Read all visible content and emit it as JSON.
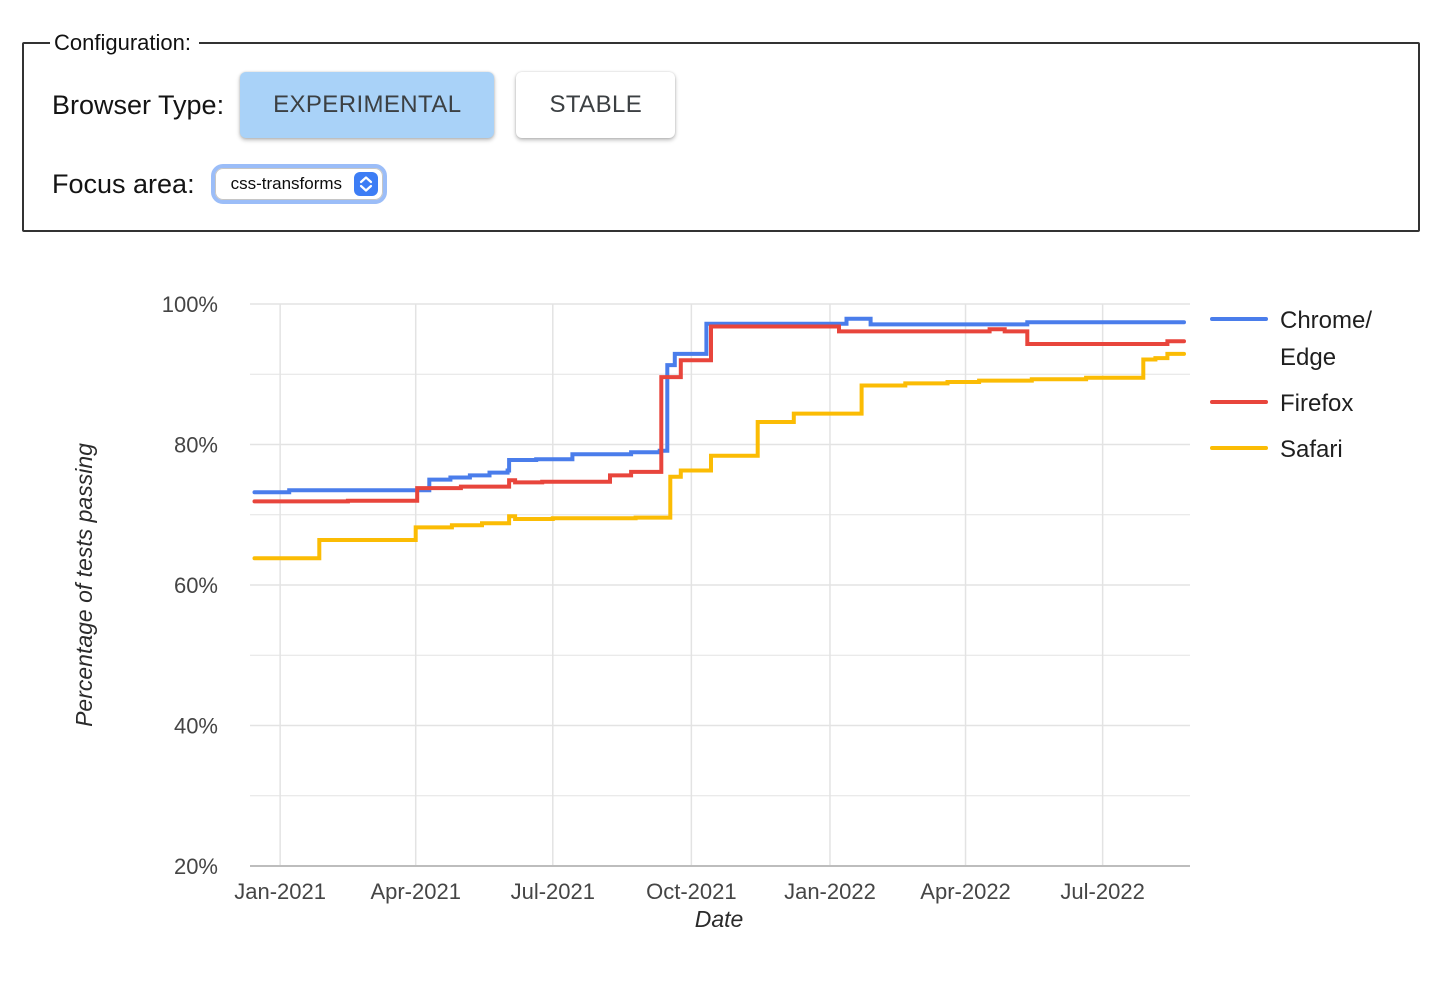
{
  "configuration": {
    "legend": "Configuration:",
    "browser_type": {
      "label": "Browser Type:",
      "options": [
        {
          "label": "EXPERIMENTAL",
          "selected": true
        },
        {
          "label": "STABLE",
          "selected": false
        }
      ]
    },
    "focus_area": {
      "label": "Focus area:",
      "selected_option": "css-transforms"
    }
  },
  "colors": {
    "chrome_edge": "#4A7DEB",
    "firefox": "#E8453C",
    "safari": "#FBBC04",
    "selected_button_bg": "#A9D2F8",
    "gridline": "#E3E3E3",
    "axis_line": "#BDBDBD",
    "tick_label": "#454545",
    "select_ring": "#9BBDF8",
    "select_stepper": "#3D7DF5"
  },
  "chart_data": {
    "type": "line",
    "title": "",
    "xlabel": "Date",
    "ylabel": "Percentage of tests passing",
    "ylim": [
      20,
      100
    ],
    "grid": true,
    "legend_position": "right",
    "x_range": [
      "2020-12-12",
      "2022-08-28"
    ],
    "yticks": [
      {
        "value": 20,
        "label": "20%"
      },
      {
        "value": 40,
        "label": "40%"
      },
      {
        "value": 60,
        "label": "60%"
      },
      {
        "value": 80,
        "label": "80%"
      },
      {
        "value": 100,
        "label": "100%"
      }
    ],
    "y_minor_ticks": [
      30,
      50,
      70,
      90
    ],
    "xticks": [
      {
        "date": "2021-01-01",
        "label": "Jan-2021"
      },
      {
        "date": "2021-04-01",
        "label": "Apr-2021"
      },
      {
        "date": "2021-07-01",
        "label": "Jul-2021"
      },
      {
        "date": "2021-10-01",
        "label": "Oct-2021"
      },
      {
        "date": "2022-01-01",
        "label": "Jan-2022"
      },
      {
        "date": "2022-04-01",
        "label": "Apr-2022"
      },
      {
        "date": "2022-07-01",
        "label": "Jul-2022"
      }
    ],
    "series": [
      {
        "name": "Chrome/Edge",
        "legend_lines": [
          "Chrome/",
          "Edge"
        ],
        "color_key": "chrome_edge",
        "points": [
          [
            "2020-12-15",
            73.2
          ],
          [
            "2021-01-07",
            73.5
          ],
          [
            "2021-04-10",
            75.0
          ],
          [
            "2021-04-24",
            75.3
          ],
          [
            "2021-05-07",
            75.6
          ],
          [
            "2021-05-20",
            76.0
          ],
          [
            "2021-06-01",
            76.3
          ],
          [
            "2021-06-02",
            77.8
          ],
          [
            "2021-06-20",
            77.9
          ],
          [
            "2021-07-14",
            78.6
          ],
          [
            "2021-08-22",
            78.9
          ],
          [
            "2021-09-10",
            79.1
          ],
          [
            "2021-09-15",
            91.3
          ],
          [
            "2021-09-20",
            92.9
          ],
          [
            "2021-10-11",
            97.2
          ],
          [
            "2022-01-12",
            97.9
          ],
          [
            "2022-01-28",
            97.1
          ],
          [
            "2022-05-12",
            97.4
          ],
          [
            "2022-08-24",
            97.4
          ]
        ]
      },
      {
        "name": "Firefox",
        "legend_lines": [
          "Firefox"
        ],
        "color_key": "firefox",
        "points": [
          [
            "2020-12-15",
            71.9
          ],
          [
            "2021-02-15",
            72.0
          ],
          [
            "2021-04-02",
            73.8
          ],
          [
            "2021-05-01",
            74.0
          ],
          [
            "2021-06-02",
            74.9
          ],
          [
            "2021-06-06",
            74.6
          ],
          [
            "2021-06-24",
            74.7
          ],
          [
            "2021-08-08",
            75.6
          ],
          [
            "2021-08-22",
            76.1
          ],
          [
            "2021-09-11",
            89.6
          ],
          [
            "2021-09-24",
            92.0
          ],
          [
            "2021-10-14",
            96.8
          ],
          [
            "2022-01-07",
            96.1
          ],
          [
            "2022-04-17",
            96.4
          ],
          [
            "2022-04-27",
            96.1
          ],
          [
            "2022-05-12",
            94.3
          ],
          [
            "2022-08-13",
            94.7
          ],
          [
            "2022-08-24",
            94.7
          ]
        ]
      },
      {
        "name": "Safari",
        "legend_lines": [
          "Safari"
        ],
        "color_key": "safari",
        "points": [
          [
            "2020-12-15",
            63.8
          ],
          [
            "2021-01-27",
            66.4
          ],
          [
            "2021-04-01",
            68.2
          ],
          [
            "2021-04-25",
            68.5
          ],
          [
            "2021-05-15",
            68.8
          ],
          [
            "2021-06-02",
            69.8
          ],
          [
            "2021-06-06",
            69.4
          ],
          [
            "2021-07-01",
            69.5
          ],
          [
            "2021-08-25",
            69.6
          ],
          [
            "2021-09-17",
            75.4
          ],
          [
            "2021-09-24",
            76.3
          ],
          [
            "2021-10-14",
            78.4
          ],
          [
            "2021-11-14",
            83.2
          ],
          [
            "2021-12-08",
            84.4
          ],
          [
            "2022-01-22",
            88.4
          ],
          [
            "2022-02-20",
            88.7
          ],
          [
            "2022-03-20",
            88.9
          ],
          [
            "2022-04-10",
            89.1
          ],
          [
            "2022-05-15",
            89.3
          ],
          [
            "2022-06-20",
            89.5
          ],
          [
            "2022-07-28",
            92.1
          ],
          [
            "2022-08-05",
            92.3
          ],
          [
            "2022-08-13",
            92.9
          ],
          [
            "2022-08-24",
            92.9
          ]
        ]
      }
    ]
  }
}
